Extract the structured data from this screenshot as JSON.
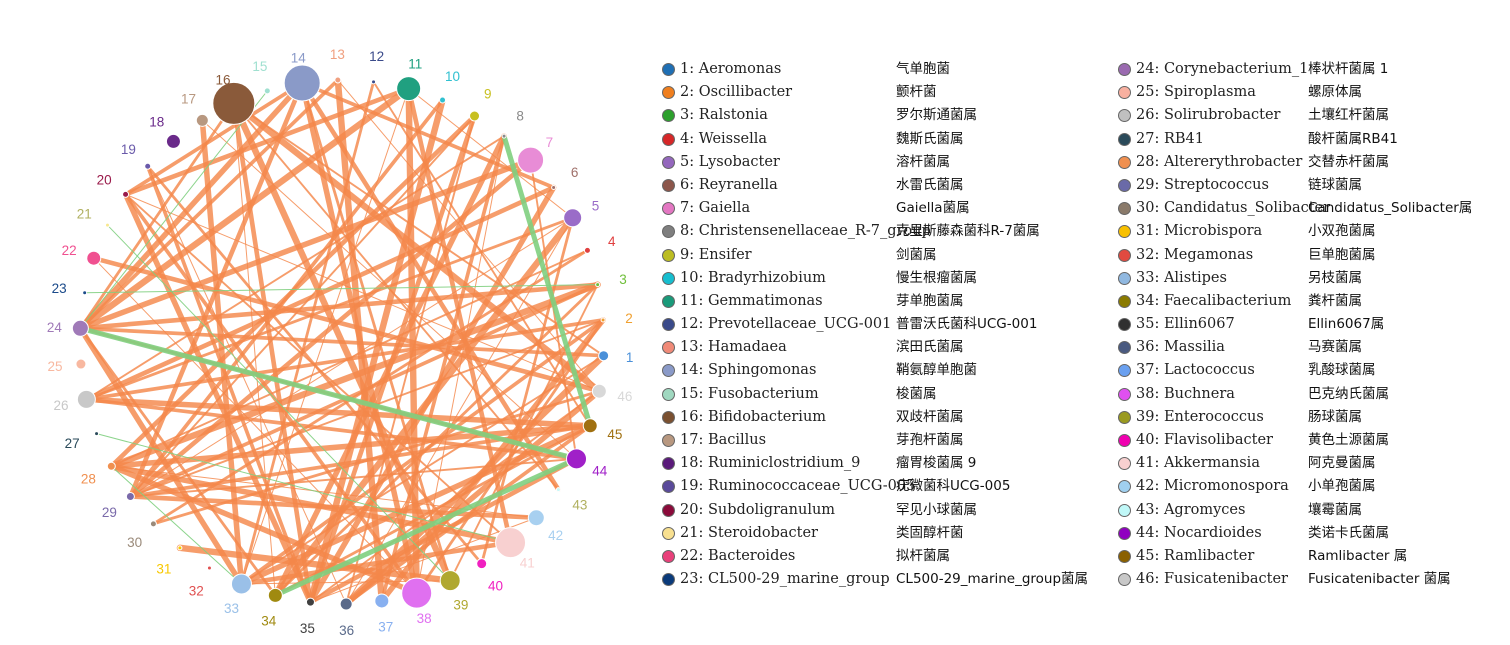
{
  "network": {
    "nodes": [
      {
        "id": 1,
        "color": "#4a90d9",
        "size": 5
      },
      {
        "id": 2,
        "color": "#f0a030",
        "size": 1
      },
      {
        "id": 3,
        "color": "#6fbf3a",
        "size": 1
      },
      {
        "id": 4,
        "color": "#e04040",
        "size": 3
      },
      {
        "id": 5,
        "color": "#9a6cc8",
        "size": 9
      },
      {
        "id": 6,
        "color": "#a0706a",
        "size": 1
      },
      {
        "id": 7,
        "color": "#e88cd6",
        "size": 13
      },
      {
        "id": 8,
        "color": "#8a8a8a",
        "size": 2
      },
      {
        "id": 9,
        "color": "#c8c020",
        "size": 5
      },
      {
        "id": 10,
        "color": "#30c0d0",
        "size": 3
      },
      {
        "id": 11,
        "color": "#20a080",
        "size": 12
      },
      {
        "id": 12,
        "color": "#3a4a8a",
        "size": 2
      },
      {
        "id": 13,
        "color": "#f0a080",
        "size": 3
      },
      {
        "id": 14,
        "color": "#8a9ac8",
        "size": 18
      },
      {
        "id": 15,
        "color": "#a0e0d0",
        "size": 3
      },
      {
        "id": 16,
        "color": "#8a5a3a",
        "size": 21
      },
      {
        "id": 17,
        "color": "#b89880",
        "size": 6
      },
      {
        "id": 18,
        "color": "#6a2a8a",
        "size": 7
      },
      {
        "id": 19,
        "color": "#6a5aaa",
        "size": 3
      },
      {
        "id": 20,
        "color": "#9a1a4a",
        "size": 3
      },
      {
        "id": 21,
        "color": "#f8e890",
        "size": 2
      },
      {
        "id": 22,
        "color": "#f05090",
        "size": 7
      },
      {
        "id": 23,
        "color": "#1a4a8a",
        "size": 2
      },
      {
        "id": 24,
        "color": "#a07ab8",
        "size": 8
      },
      {
        "id": 25,
        "color": "#f8b8a0",
        "size": 5
      },
      {
        "id": 26,
        "color": "#c8c8c8",
        "size": 9
      },
      {
        "id": 27,
        "color": "#2a4a5a",
        "size": 1
      },
      {
        "id": 28,
        "color": "#f09050",
        "size": 4
      },
      {
        "id": 29,
        "color": "#7a6aaa",
        "size": 4
      },
      {
        "id": 30,
        "color": "#9a8a7a",
        "size": 3
      },
      {
        "id": 31,
        "color": "#f8c800",
        "size": 2
      },
      {
        "id": 32,
        "color": "#e05050",
        "size": 1
      },
      {
        "id": 33,
        "color": "#9ac0e8",
        "size": 10
      },
      {
        "id": 34,
        "color": "#a08a10",
        "size": 7
      },
      {
        "id": 35,
        "color": "#404040",
        "size": 4
      },
      {
        "id": 36,
        "color": "#5a6a8a",
        "size": 6
      },
      {
        "id": 37,
        "color": "#88b0f0",
        "size": 7
      },
      {
        "id": 38,
        "color": "#e070f0",
        "size": 15
      },
      {
        "id": 39,
        "color": "#b0a830",
        "size": 10
      },
      {
        "id": 40,
        "color": "#f020c0",
        "size": 5
      },
      {
        "id": 41,
        "color": "#f8d0d0",
        "size": 15
      },
      {
        "id": 42,
        "color": "#a8d0f0",
        "size": 8
      },
      {
        "id": 43,
        "color": "#c8f8f8",
        "size": 2
      },
      {
        "id": 44,
        "color": "#a020c8",
        "size": 10
      },
      {
        "id": 45,
        "color": "#a07010",
        "size": 7
      },
      {
        "id": 46,
        "color": "#d8d8d8",
        "size": 7
      }
    ],
    "edges_orange": [
      [
        2,
        33
      ],
      [
        2,
        38
      ],
      [
        2,
        26
      ],
      [
        2,
        29
      ],
      [
        2,
        37
      ],
      [
        14,
        38
      ],
      [
        14,
        24
      ],
      [
        14,
        29
      ],
      [
        14,
        6
      ],
      [
        14,
        43
      ],
      [
        14,
        39
      ],
      [
        14,
        20
      ],
      [
        16,
        34
      ],
      [
        16,
        39
      ],
      [
        16,
        24
      ],
      [
        16,
        46
      ],
      [
        16,
        1
      ],
      [
        16,
        43
      ],
      [
        16,
        35
      ],
      [
        11,
        41
      ],
      [
        11,
        38
      ],
      [
        11,
        5
      ],
      [
        11,
        24
      ],
      [
        11,
        20
      ],
      [
        11,
        33
      ],
      [
        9,
        36
      ],
      [
        9,
        29
      ],
      [
        9,
        28
      ],
      [
        9,
        35
      ],
      [
        8,
        34
      ],
      [
        8,
        26
      ],
      [
        8,
        38
      ],
      [
        8,
        37
      ],
      [
        5,
        34
      ],
      [
        5,
        26
      ],
      [
        5,
        36
      ],
      [
        5,
        40
      ],
      [
        5,
        29
      ],
      [
        13,
        46
      ],
      [
        13,
        24
      ],
      [
        13,
        37
      ],
      [
        17,
        44
      ],
      [
        17,
        33
      ],
      [
        20,
        41
      ],
      [
        20,
        35
      ],
      [
        20,
        46
      ],
      [
        20,
        38
      ],
      [
        22,
        38
      ],
      [
        22,
        46
      ],
      [
        3,
        24
      ],
      [
        3,
        39
      ],
      [
        3,
        29
      ],
      [
        3,
        34
      ],
      [
        3,
        28
      ],
      [
        46,
        35
      ],
      [
        46,
        30
      ],
      [
        46,
        36
      ],
      [
        45,
        26
      ],
      [
        45,
        34
      ],
      [
        45,
        33
      ],
      [
        45,
        36
      ],
      [
        45,
        29
      ],
      [
        44,
        26
      ],
      [
        44,
        35
      ],
      [
        44,
        29
      ],
      [
        44,
        24
      ],
      [
        41,
        28
      ],
      [
        41,
        33
      ],
      [
        39,
        33
      ],
      [
        39,
        31
      ],
      [
        42,
        29
      ],
      [
        42,
        35
      ],
      [
        28,
        38
      ],
      [
        28,
        42
      ],
      [
        28,
        45
      ],
      [
        24,
        34
      ],
      [
        24,
        33
      ],
      [
        24,
        1
      ],
      [
        19,
        35
      ],
      [
        19,
        36
      ],
      [
        19,
        40
      ],
      [
        4,
        28
      ],
      [
        4,
        30
      ],
      [
        7,
        44
      ],
      [
        7,
        29
      ],
      [
        7,
        24
      ],
      [
        12,
        33
      ],
      [
        12,
        45
      ],
      [
        1,
        33
      ],
      [
        1,
        36
      ],
      [
        10,
        29
      ],
      [
        10,
        35
      ],
      [
        6,
        26
      ],
      [
        6,
        35
      ]
    ],
    "edges_green": [
      [
        24,
        44
      ],
      [
        8,
        45
      ],
      [
        34,
        44
      ],
      [
        23,
        3
      ],
      [
        27,
        41
      ],
      [
        28,
        33
      ],
      [
        15,
        24
      ],
      [
        21,
        39
      ]
    ]
  },
  "legend": {
    "col1": [
      {
        "id": 1,
        "name": "1: Aeromonas",
        "cn": "气单胞菌",
        "color": "#1f6fb4"
      },
      {
        "id": 2,
        "name": "2: Oscillibacter",
        "cn": "颤杆菌",
        "color": "#f07f1e"
      },
      {
        "id": 3,
        "name": "3: Ralstonia",
        "cn": "罗尔斯通菌属",
        "color": "#2ca02c"
      },
      {
        "id": 4,
        "name": "4: Weissella",
        "cn": "魏斯氏菌属",
        "color": "#d62728"
      },
      {
        "id": 5,
        "name": "5: Lysobacter",
        "cn": "溶杆菌属",
        "color": "#9467bd"
      },
      {
        "id": 6,
        "name": "6: Reyranella",
        "cn": "水雷氏菌属",
        "color": "#8c564b"
      },
      {
        "id": 7,
        "name": "7: Gaiella",
        "cn": "Gaiella菌属",
        "color": "#e377c2"
      },
      {
        "id": 8,
        "name": "8: Christensenellaceae_R-7_group",
        "cn": "克里斯藤森菌科R-7菌属",
        "color": "#7f7f7f"
      },
      {
        "id": 9,
        "name": "9: Ensifer",
        "cn": "剑菌属",
        "color": "#bcbd22"
      },
      {
        "id": 10,
        "name": "10: Bradyrhizobium",
        "cn": "慢生根瘤菌属",
        "color": "#17becf"
      },
      {
        "id": 11,
        "name": "11: Gemmatimonas",
        "cn": "芽单胞菌属",
        "color": "#1a9a7a"
      },
      {
        "id": 12,
        "name": "12: Prevotellaceae_UCG-001",
        "cn": "普雷沃氏菌科UCG-001",
        "color": "#3a4a8a"
      },
      {
        "id": 13,
        "name": "13: Hamadaea",
        "cn": "滨田氏菌属",
        "color": "#f08a78"
      },
      {
        "id": 14,
        "name": "14: Sphingomonas",
        "cn": "鞘氨醇单胞菌",
        "color": "#8a9ac8"
      },
      {
        "id": 15,
        "name": "15: Fusobacterium",
        "cn": "梭菌属",
        "color": "#a0d8c0"
      },
      {
        "id": 16,
        "name": "16: Bifidobacterium",
        "cn": "双歧杆菌属",
        "color": "#7a5030"
      },
      {
        "id": 17,
        "name": "17: Bacillus",
        "cn": "芽孢杆菌属",
        "color": "#b89880"
      },
      {
        "id": 18,
        "name": "18: Ruminiclostridium_9",
        "cn": "瘤胃梭菌属 9",
        "color": "#5a1a7a"
      },
      {
        "id": 19,
        "name": "19: Ruminococcaceae_UCG-005",
        "cn": "疣微菌科UCG-005",
        "color": "#5a4a9a"
      },
      {
        "id": 20,
        "name": "20: Subdoligranulum",
        "cn": "罕见小球菌属",
        "color": "#8a0a3a"
      },
      {
        "id": 21,
        "name": "21: Steroidobacter",
        "cn": "类固醇杆菌",
        "color": "#f8e090"
      },
      {
        "id": 22,
        "name": "22: Bacteroides",
        "cn": "拟杆菌属",
        "color": "#e8407a"
      },
      {
        "id": 23,
        "name": "23: CL500-29_marine_group",
        "cn": "CL500-29_marine_group菌属",
        "color": "#0a3a7a"
      }
    ],
    "col2": [
      {
        "id": 24,
        "name": "24: Corynebacterium_1",
        "cn": "棒状杆菌属 1",
        "color": "#9a6ab0"
      },
      {
        "id": 25,
        "name": "25: Spiroplasma",
        "cn": "螺原体属",
        "color": "#f8b0a0"
      },
      {
        "id": 26,
        "name": "26: Solirubrobacter",
        "cn": "土壤红杆菌属",
        "color": "#c0c0c0"
      },
      {
        "id": 27,
        "name": "27: RB41",
        "cn": "酸杆菌属RB41",
        "color": "#2a4a5a"
      },
      {
        "id": 28,
        "name": "28: Altererythrobacter",
        "cn": "交替赤杆菌属",
        "color": "#f09050"
      },
      {
        "id": 29,
        "name": "29: Streptococcus",
        "cn": "链球菌属",
        "color": "#6a6aa8"
      },
      {
        "id": 30,
        "name": "30: Candidatus_Solibacter",
        "cn": "Candidatus_Solibacter属",
        "color": "#8a7a6a"
      },
      {
        "id": 31,
        "name": "31: Microbispora",
        "cn": "小双孢菌属",
        "color": "#f8c000"
      },
      {
        "id": 32,
        "name": "32: Megamonas",
        "cn": "巨单胞菌属",
        "color": "#e04a40"
      },
      {
        "id": 33,
        "name": "33: Alistipes",
        "cn": "另枝菌属",
        "color": "#90b8e0"
      },
      {
        "id": 34,
        "name": "34: Faecalibacterium",
        "cn": "粪杆菌属",
        "color": "#8a7a00"
      },
      {
        "id": 35,
        "name": "35: Ellin6067",
        "cn": "Ellin6067属",
        "color": "#303030"
      },
      {
        "id": 36,
        "name": "36: Massilia",
        "cn": "马赛菌属",
        "color": "#4a5a80"
      },
      {
        "id": 37,
        "name": "37: Lactococcus",
        "cn": "乳酸球菌属",
        "color": "#6aa0f0"
      },
      {
        "id": 38,
        "name": "38: Buchnera",
        "cn": "巴克纳氏菌属",
        "color": "#e050f0"
      },
      {
        "id": 39,
        "name": "39: Enterococcus",
        "cn": "肠球菌属",
        "color": "#9a9a20"
      },
      {
        "id": 40,
        "name": "40: Flavisolibacter",
        "cn": "黄色土源菌属",
        "color": "#f000b0"
      },
      {
        "id": 41,
        "name": "41: Akkermansia",
        "cn": "阿克曼菌属",
        "color": "#f8d0d0"
      },
      {
        "id": 42,
        "name": "42: Micromonospora",
        "cn": "小单孢菌属",
        "color": "#a0d0f0"
      },
      {
        "id": 43,
        "name": "43: Agromyces",
        "cn": "壤霉菌属",
        "color": "#c0f8f8"
      },
      {
        "id": 44,
        "name": "44: Nocardioides",
        "cn": "类诺卡氏菌属",
        "color": "#9000c0"
      },
      {
        "id": 45,
        "name": "45: Ramlibacter",
        "cn": "Ramlibacter 属",
        "color": "#8a6000"
      },
      {
        "id": 46,
        "name": "46: Fusicatenibacter",
        "cn": "Fusicatenibacter 菌属",
        "color": "#c8c8c8"
      }
    ]
  }
}
